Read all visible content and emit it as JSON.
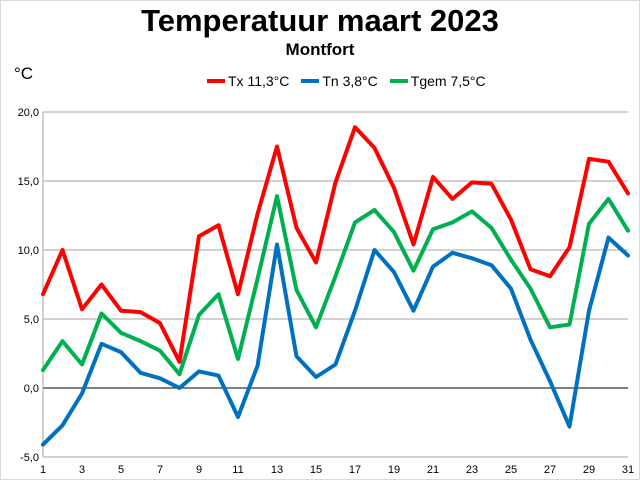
{
  "chart_data": {
    "type": "line",
    "title": "Temperatuur maart 2023",
    "subtitle": "Montfort",
    "ylabel": "°C",
    "xlabel": "",
    "xlim": [
      1,
      31
    ],
    "ylim": [
      -5,
      20
    ],
    "y_ticks": [
      "-5,0",
      "0,0",
      "5,0",
      "10,0",
      "15,0",
      "20,0"
    ],
    "x_ticks": [
      "1",
      "3",
      "5",
      "7",
      "9",
      "11",
      "13",
      "15",
      "17",
      "19",
      "21",
      "23",
      "25",
      "27",
      "29",
      "31"
    ],
    "grid": "horizontal",
    "legend_position": "top",
    "series": [
      {
        "name": "Tx 11,3°C",
        "color": "#ff0000",
        "values": [
          6.8,
          10.0,
          5.7,
          7.5,
          5.6,
          5.5,
          4.7,
          1.9,
          11.0,
          11.8,
          6.8,
          12.6,
          17.5,
          11.6,
          9.1,
          14.9,
          18.9,
          17.4,
          14.5,
          10.4,
          15.3,
          13.7,
          14.9,
          14.8,
          12.2,
          8.6,
          8.1,
          10.2,
          16.6,
          16.4,
          14.1
        ]
      },
      {
        "name": "Tn 3,8°C",
        "color": "#0070c0",
        "values": [
          -4.1,
          -2.7,
          -0.4,
          3.2,
          2.6,
          1.1,
          0.7,
          0.0,
          1.2,
          0.9,
          -2.1,
          1.6,
          10.4,
          2.3,
          0.8,
          1.7,
          5.6,
          10.0,
          8.4,
          5.6,
          8.8,
          9.8,
          9.4,
          8.9,
          7.2,
          3.5,
          0.5,
          -2.8,
          5.6,
          10.9,
          9.6
        ]
      },
      {
        "name": "Tgem 7,5°C",
        "color": "#00b050",
        "values": [
          1.3,
          3.4,
          1.7,
          5.4,
          4.0,
          3.4,
          2.7,
          1.0,
          5.3,
          6.8,
          2.1,
          7.9,
          13.9,
          7.1,
          4.4,
          8.1,
          12.0,
          12.9,
          11.3,
          8.5,
          11.5,
          12.0,
          12.8,
          11.6,
          9.3,
          7.2,
          4.4,
          4.6,
          11.9,
          13.7,
          11.4
        ]
      }
    ]
  }
}
